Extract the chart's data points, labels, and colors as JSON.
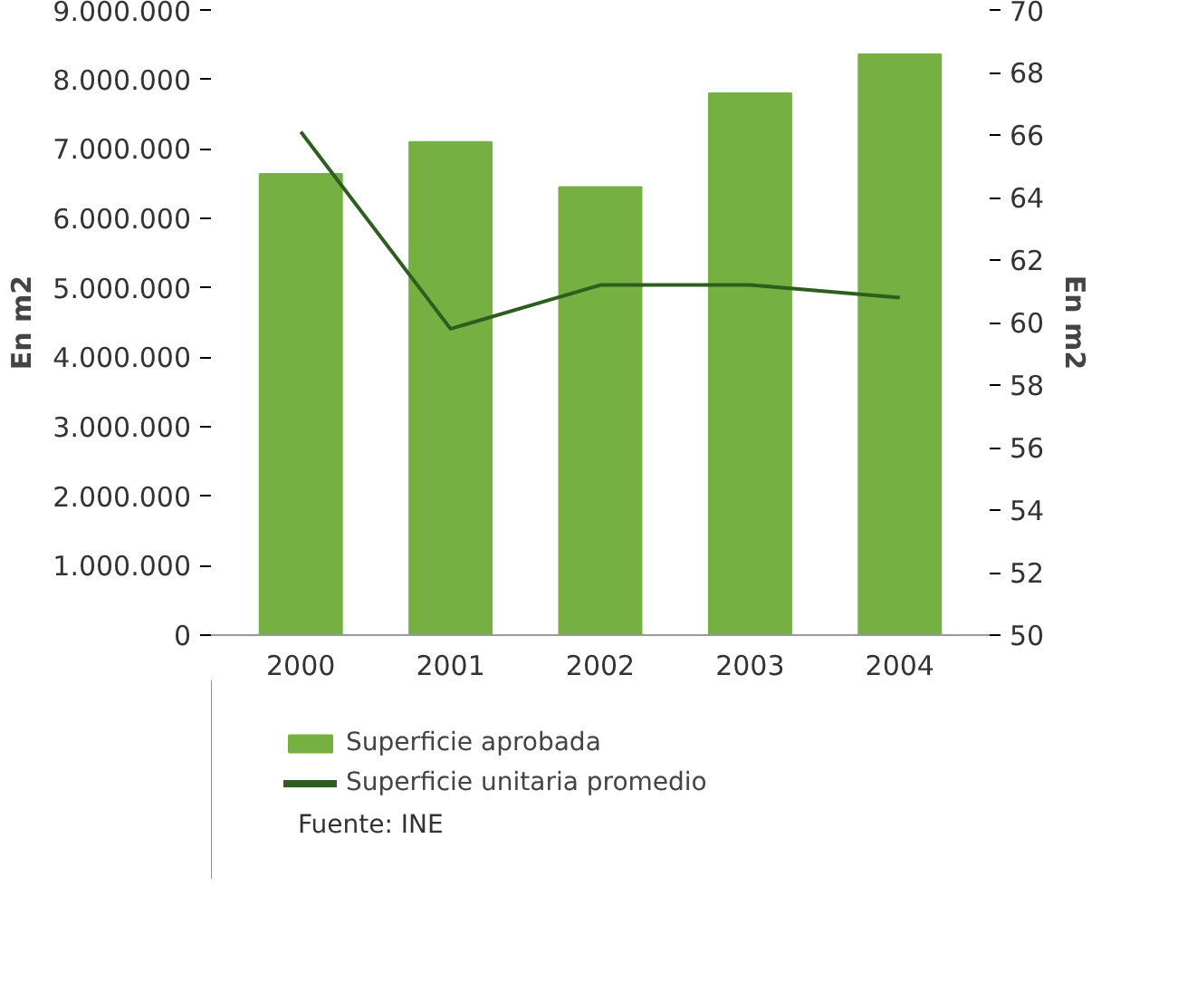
{
  "chart_data": {
    "type": "bar",
    "categories": [
      "2000",
      "2001",
      "2002",
      "2003",
      "2004"
    ],
    "series": [
      {
        "name": "Superficie aprobada",
        "color": "#76b043",
        "values": [
          6640000,
          7100000,
          6450000,
          7800000,
          8360000
        ]
      },
      {
        "name": "Superficie unitaria promedio",
        "type": "line",
        "axis": "y2",
        "color": "#2d5e1e",
        "values": [
          66.1,
          59.8,
          61.2,
          61.2,
          60.8
        ]
      }
    ],
    "ylabel": "En m2",
    "y2label": "En m2",
    "ylim": [
      0,
      9000000
    ],
    "yticks": [
      0,
      {
        "value": 1000000,
        "label": "1.000.000"
      },
      {
        "value": 2000000,
        "label": "2.000.000"
      },
      {
        "value": 3000000,
        "label": "3.000.000"
      },
      {
        "value": 4000000,
        "label": "4.000.000"
      },
      {
        "value": 5000000,
        "label": "5.000.000"
      },
      {
        "value": 6000000,
        "label": "6.000.000"
      },
      {
        "value": 7000000,
        "label": "7.000.000"
      },
      {
        "value": 8000000,
        "label": "8.000.000"
      },
      {
        "value": 9000000,
        "label": "9.000.000"
      }
    ],
    "y2lim": [
      50,
      70
    ],
    "y2ticks": [
      50,
      52,
      54,
      56,
      58,
      60,
      62,
      64,
      66,
      68,
      70
    ],
    "legend": "bottom",
    "grid": false,
    "marker": "none",
    "annotations": [
      "Fuente: INE"
    ]
  }
}
